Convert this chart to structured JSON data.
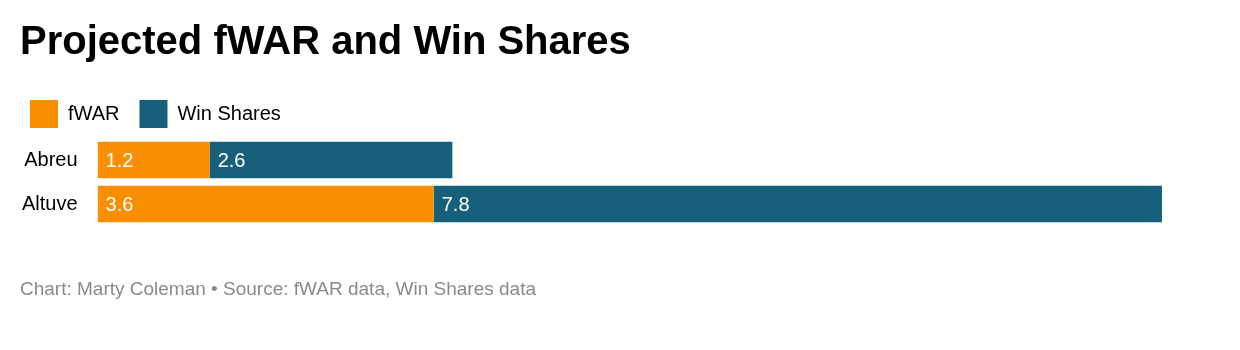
{
  "chart_data": {
    "type": "bar",
    "orientation": "horizontal",
    "stacked": true,
    "title": "Projected fWAR and Win Shares",
    "categories": [
      "Abreu",
      "Altuve"
    ],
    "series": [
      {
        "name": "fWAR",
        "color": "#f98f00",
        "values": [
          1.2,
          3.6
        ]
      },
      {
        "name": "Win Shares",
        "color": "#17607b",
        "values": [
          2.6,
          7.8
        ]
      }
    ],
    "data_labels": true,
    "legend": "top left",
    "annotations": [
      "Chart: Marty Coleman • Source: fWAR data, Win Shares data"
    ]
  }
}
